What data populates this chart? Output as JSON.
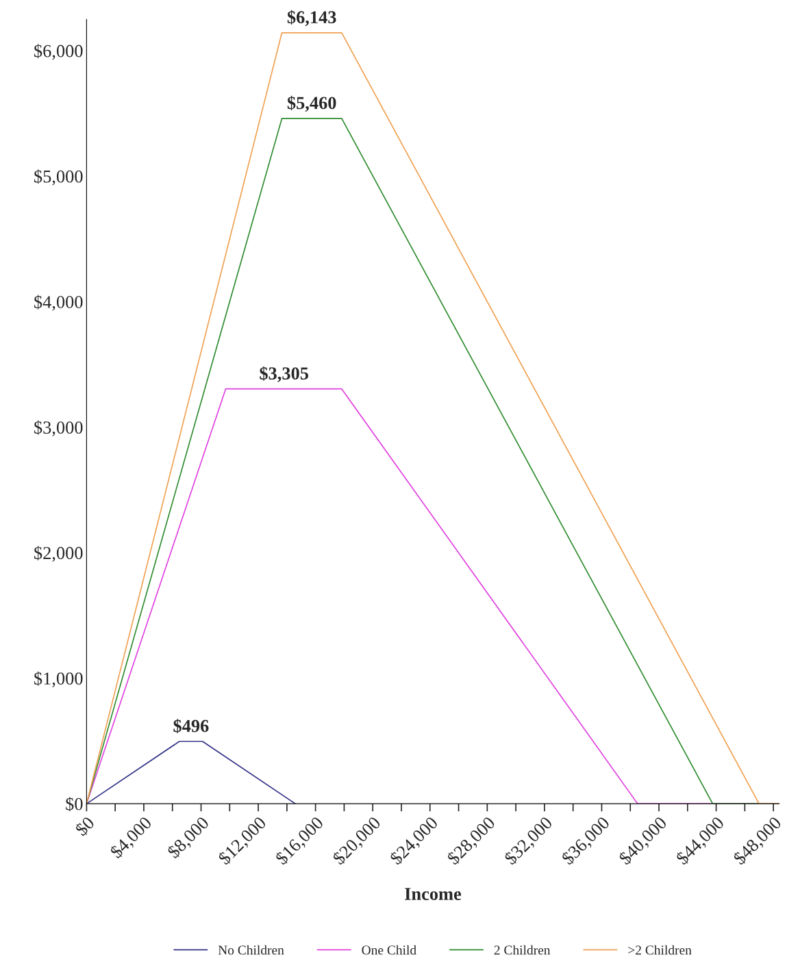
{
  "chart_data": {
    "type": "line",
    "xlabel": "Income",
    "xlim": [
      0,
      48400
    ],
    "ylim": [
      0,
      6250
    ],
    "xticks": [
      {
        "value": 0,
        "label": "$0"
      },
      {
        "value": 2000,
        "label": null
      },
      {
        "value": 4000,
        "label": "$4,000"
      },
      {
        "value": 6000,
        "label": null
      },
      {
        "value": 8000,
        "label": "$8,000"
      },
      {
        "value": 10000,
        "label": null
      },
      {
        "value": 12000,
        "label": "$12,000"
      },
      {
        "value": 14000,
        "label": null
      },
      {
        "value": 16000,
        "label": "$16,000"
      },
      {
        "value": 18000,
        "label": null
      },
      {
        "value": 20000,
        "label": "$20,000"
      },
      {
        "value": 22000,
        "label": null
      },
      {
        "value": 24000,
        "label": "$24,000"
      },
      {
        "value": 26000,
        "label": null
      },
      {
        "value": 28000,
        "label": "$28,000"
      },
      {
        "value": 30000,
        "label": null
      },
      {
        "value": 32000,
        "label": "$32,000"
      },
      {
        "value": 34000,
        "label": null
      },
      {
        "value": 36000,
        "label": "$36,000"
      },
      {
        "value": 38000,
        "label": null
      },
      {
        "value": 40000,
        "label": "$40,000"
      },
      {
        "value": 42000,
        "label": null
      },
      {
        "value": 44000,
        "label": "$44,000"
      },
      {
        "value": 46000,
        "label": null
      },
      {
        "value": 48000,
        "label": "$48,000"
      }
    ],
    "yticks": [
      {
        "value": 0,
        "label": "$0"
      },
      {
        "value": 1000,
        "label": "$1,000"
      },
      {
        "value": 2000,
        "label": "$2,000"
      },
      {
        "value": 3000,
        "label": "$3,000"
      },
      {
        "value": 4000,
        "label": "$4,000"
      },
      {
        "value": 5000,
        "label": "$5,000"
      },
      {
        "value": 6000,
        "label": "$6,000"
      }
    ],
    "grid": false,
    "legend": "bottom",
    "marker": "none",
    "line_style": "solid",
    "series": [
      {
        "name": "No Children",
        "color": "#333388",
        "x": [
          0,
          6480,
          8110,
          14590
        ],
        "values": [
          0,
          496,
          496,
          0
        ]
      },
      {
        "name": "One Child",
        "color": "#e040e0",
        "x": [
          0,
          9720,
          17830,
          38511,
          48400
        ],
        "values": [
          0,
          3305,
          3305,
          0,
          0
        ]
      },
      {
        "name": "2 Children",
        "color": "#2e8b2e",
        "x": [
          0,
          13650,
          17830,
          43756,
          48400
        ],
        "values": [
          0,
          5460,
          5460,
          0,
          0
        ]
      },
      {
        "name": ">2 Children",
        "color": "#f0a050",
        "x": [
          0,
          13650,
          17830,
          46997,
          48400
        ],
        "values": [
          0,
          6143,
          6143,
          0,
          0
        ]
      }
    ],
    "annotations": [
      {
        "text": "$496",
        "x": 7300,
        "y": 496
      },
      {
        "text": "$3,305",
        "x": 13800,
        "y": 3305
      },
      {
        "text": "$5,460",
        "x": 15740,
        "y": 5460
      },
      {
        "text": "$6,143",
        "x": 15740,
        "y": 6143
      }
    ]
  }
}
